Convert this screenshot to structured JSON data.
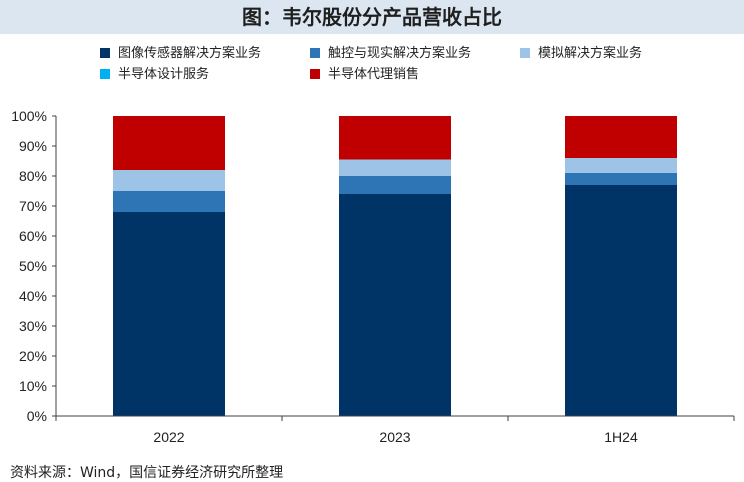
{
  "title": "图：韦尔股份分产品营收占比",
  "source": "资料来源：Wind，国信证券经济研究所整理",
  "chart_data": {
    "type": "bar",
    "stacked": true,
    "categories": [
      "2022",
      "2023",
      "1H24"
    ],
    "ylim": [
      0,
      100
    ],
    "y_ticks": [
      "0%",
      "10%",
      "20%",
      "30%",
      "40%",
      "50%",
      "60%",
      "70%",
      "80%",
      "90%",
      "100%"
    ],
    "legend_position": "top",
    "series": [
      {
        "name": "图像传感器解决方案业务",
        "color": "#003366",
        "values": [
          68,
          74,
          77
        ]
      },
      {
        "name": "触控与现实解决方案业务",
        "color": "#2e75b6",
        "values": [
          7,
          6,
          4
        ]
      },
      {
        "name": "模拟解决方案业务",
        "color": "#9dc3e6",
        "values": [
          7,
          5.5,
          5
        ]
      },
      {
        "name": "半导体设计服务",
        "color": "#00b0f0",
        "values": [
          0,
          0,
          0
        ]
      },
      {
        "name": "半导体代理销售",
        "color": "#c00000",
        "values": [
          18,
          14.5,
          14
        ]
      }
    ]
  }
}
